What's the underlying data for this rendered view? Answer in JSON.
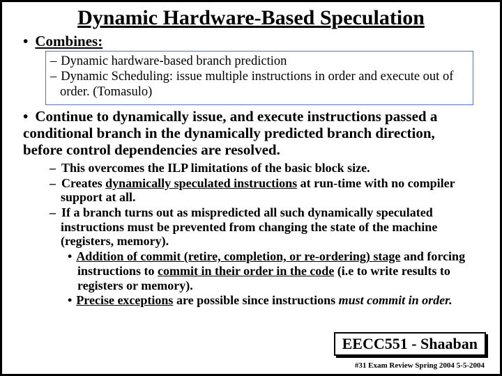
{
  "title": "Dynamic Hardware-Based Speculation",
  "combines_label": "Combines:",
  "boxed_items": [
    "Dynamic hardware-based branch prediction",
    "Dynamic Scheduling:  issue multiple instructions in order and execute out of order. (Tomasulo)"
  ],
  "continue_text": "Continue to dynamically issue, and execute instructions passed a conditional branch in the dynamically predicted branch direction, before control dependencies are resolved.",
  "sub": {
    "a": "This overcomes the ILP limitations of the basic block size.",
    "b_pre": "Creates ",
    "b_u": "dynamically speculated instructions",
    "b_post": " at run-time with no compiler support at all.",
    "c": "If a branch turns out as mispredicted all such dynamically speculated instructions must be prevented from changing the state of the machine (registers, memory).",
    "d_u1": "Addition of commit (retire, completion, or re-ordering) stage",
    "d_mid": " and forcing instructions to ",
    "d_u2": "commit in their order in the code",
    "d_post": " (i.e to write results to registers or memory).",
    "e_u": "Precise exceptions",
    "e_mid": " are possible since instructions ",
    "e_i": "must commit in order."
  },
  "footer": {
    "box": "EECC551 - Shaaban",
    "small": "#31  Exam Review  Spring 2004  5-5-2004"
  }
}
